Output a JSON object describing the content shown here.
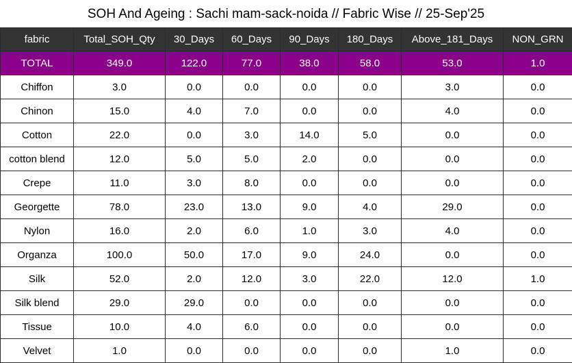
{
  "title": "SOH And Ageing : Sachi mam-sack-noida // Fabric Wise // 25-Sep'25",
  "colors": {
    "header_bg": "#333333",
    "total_bg": "#8b0089",
    "border": "#2b2b2b"
  },
  "columns": [
    "fabric",
    "Total_SOH_Qty",
    "30_Days",
    "60_Days",
    "90_Days",
    "180_Days",
    "Above_181_Days",
    "NON_GRN"
  ],
  "total": [
    "TOTAL",
    "349.0",
    "122.0",
    "77.0",
    "38.0",
    "58.0",
    "53.0",
    "1.0"
  ],
  "rows": [
    [
      "Chiffon",
      "3.0",
      "0.0",
      "0.0",
      "0.0",
      "0.0",
      "3.0",
      "0.0"
    ],
    [
      "Chinon",
      "15.0",
      "4.0",
      "7.0",
      "0.0",
      "0.0",
      "4.0",
      "0.0"
    ],
    [
      "Cotton",
      "22.0",
      "0.0",
      "3.0",
      "14.0",
      "5.0",
      "0.0",
      "0.0"
    ],
    [
      "cotton blend",
      "12.0",
      "5.0",
      "5.0",
      "2.0",
      "0.0",
      "0.0",
      "0.0"
    ],
    [
      "Crepe",
      "11.0",
      "3.0",
      "8.0",
      "0.0",
      "0.0",
      "0.0",
      "0.0"
    ],
    [
      "Georgette",
      "78.0",
      "23.0",
      "13.0",
      "9.0",
      "4.0",
      "29.0",
      "0.0"
    ],
    [
      "Nylon",
      "16.0",
      "2.0",
      "6.0",
      "1.0",
      "3.0",
      "4.0",
      "0.0"
    ],
    [
      "Organza",
      "100.0",
      "50.0",
      "17.0",
      "9.0",
      "24.0",
      "0.0",
      "0.0"
    ],
    [
      "Silk",
      "52.0",
      "2.0",
      "12.0",
      "3.0",
      "22.0",
      "12.0",
      "1.0"
    ],
    [
      "Silk blend",
      "29.0",
      "29.0",
      "0.0",
      "0.0",
      "0.0",
      "0.0",
      "0.0"
    ],
    [
      "Tissue",
      "10.0",
      "4.0",
      "6.0",
      "0.0",
      "0.0",
      "0.0",
      "0.0"
    ],
    [
      "Velvet",
      "1.0",
      "0.0",
      "0.0",
      "0.0",
      "0.0",
      "1.0",
      "0.0"
    ]
  ]
}
